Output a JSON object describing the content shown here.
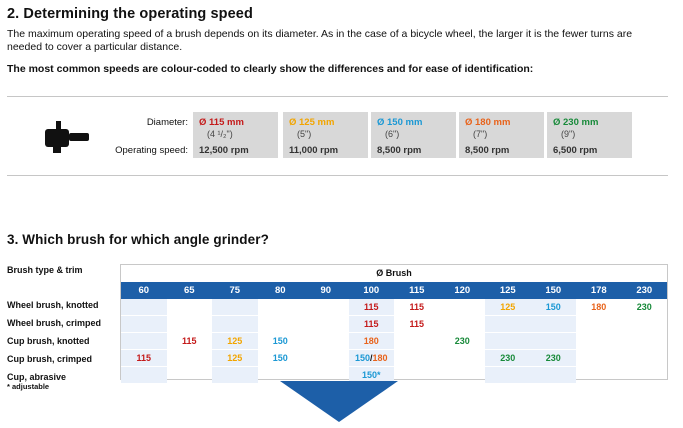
{
  "section2": {
    "title": "2. Determining the operating speed",
    "para": "The maximum operating speed of a brush depends on its diameter. As in the case of a bicycle wheel, the larger it is the fewer turns are needed to cover a particular distance.",
    "para_bold": "The most common speeds are colour-coded to clearly show the differences and for ease of identification:",
    "diameter_label": "Diameter:",
    "speed_label": "Operating speed:",
    "cards": [
      {
        "d1": "Ø  115 mm",
        "d2": "(4 ¹/₂\")",
        "speed": "12,500 rpm",
        "color": "#c41a1a"
      },
      {
        "d1": "Ø  125 mm",
        "d2": "(5\")",
        "speed": "11,000 rpm",
        "color": "#f2a500"
      },
      {
        "d1": "Ø  150 mm",
        "d2": "(6\")",
        "speed": "8,500 rpm",
        "color": "#1b98d4"
      },
      {
        "d1": "Ø  180 mm",
        "d2": "(7\")",
        "speed": "8,500 rpm",
        "color": "#e8631b"
      },
      {
        "d1": "Ø  230 mm",
        "d2": "(9\")",
        "speed": "6,500 rpm",
        "color": "#188a3a"
      }
    ]
  },
  "section3": {
    "title": "3. Which brush for which angle grinder?",
    "brush_type_label": "Brush type & trim",
    "brush_head": "Ø Brush",
    "columns": [
      "60",
      "65",
      "75",
      "80",
      "90",
      "100",
      "115",
      "120",
      "125",
      "150",
      "178",
      "230"
    ],
    "rows": [
      {
        "label": "Wheel brush, knotted",
        "cells": [
          "",
          "",
          "",
          "",
          "",
          "115",
          "115",
          "",
          "125",
          "150",
          "180",
          "230"
        ]
      },
      {
        "label": "Wheel brush, crimped",
        "cells": [
          "",
          "",
          "",
          "",
          "",
          "115",
          "115",
          "",
          "",
          "",
          "",
          ""
        ]
      },
      {
        "label": "Cup brush, knotted",
        "cells": [
          "",
          "115",
          "125",
          "150",
          "",
          "180",
          "",
          "230",
          "",
          "",
          "",
          ""
        ]
      },
      {
        "label": "Cup brush, crimped",
        "cells": [
          "115",
          "",
          "125",
          "150",
          "",
          "150/180",
          "",
          "",
          "230",
          "230",
          "",
          ""
        ]
      },
      {
        "label": "Cup, abrasive",
        "cells": [
          "",
          "",
          "",
          "",
          "",
          "150*",
          "",
          "",
          "",
          "",
          "",
          ""
        ]
      }
    ],
    "footnote": "* adjustable"
  },
  "colors": {
    "accent": "#1d5fa8",
    "115": "#c41a1a",
    "125": "#f2a500",
    "150": "#1b98d4",
    "180": "#e8631b",
    "230": "#188a3a"
  },
  "icons": {
    "grinder": "angle-grinder-icon",
    "arrow": "down-arrow-icon"
  }
}
